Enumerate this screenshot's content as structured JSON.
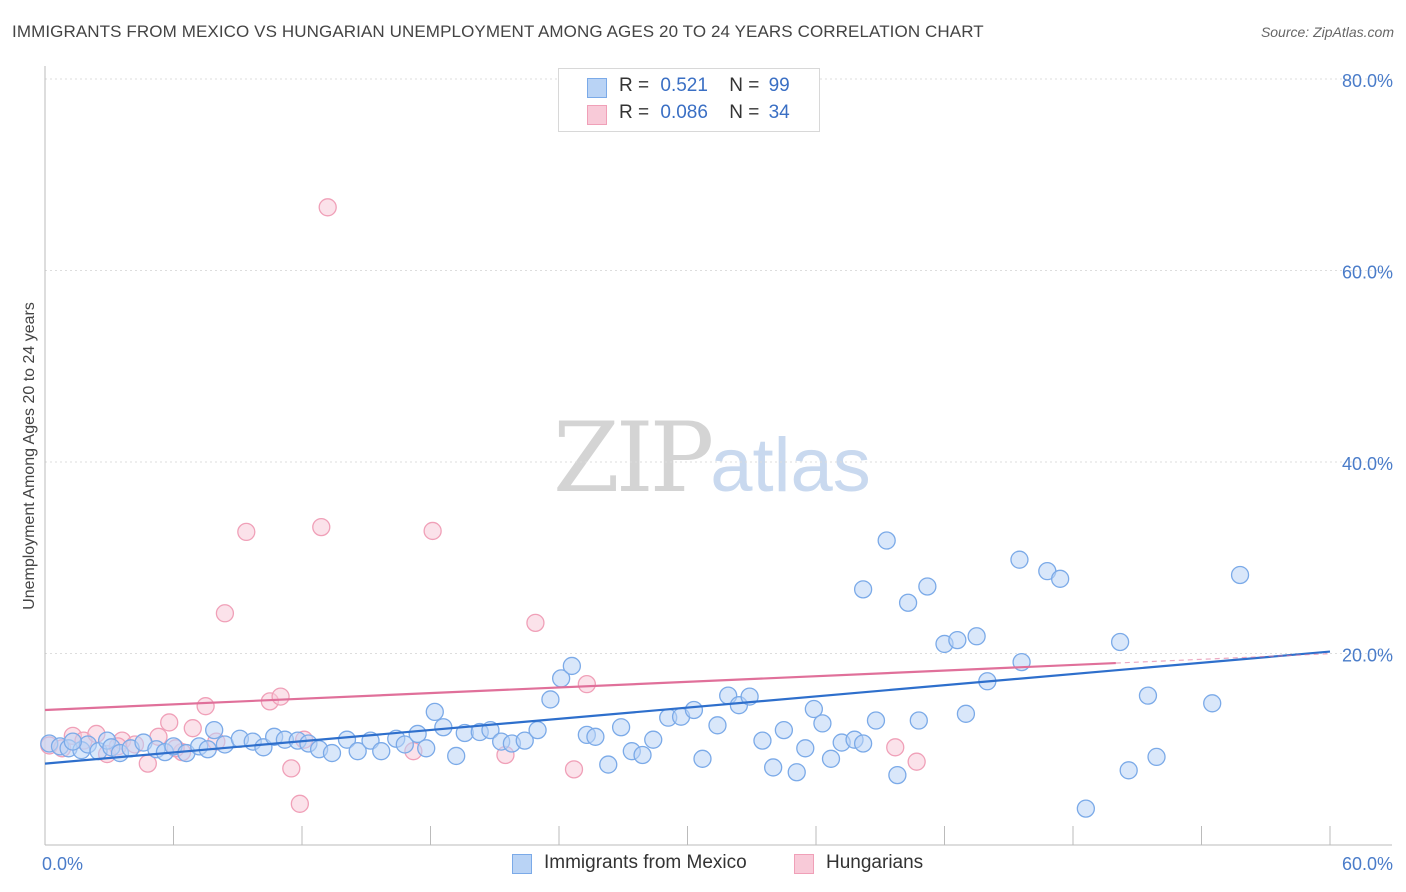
{
  "header": {
    "title": "IMMIGRANTS FROM MEXICO VS HUNGARIAN UNEMPLOYMENT AMONG AGES 20 TO 24 YEARS CORRELATION CHART",
    "source": "Source: ZipAtlas.com"
  },
  "watermark": {
    "zip": "ZIP",
    "atlas": "atlas"
  },
  "legend": {
    "rows": [
      {
        "r_label": "R =",
        "r_value": "0.521",
        "n_label": "N =",
        "n_value": "99"
      },
      {
        "r_label": "R =",
        "r_value": "0.086",
        "n_label": "N =",
        "n_value": "34"
      }
    ]
  },
  "colors": {
    "series1": "#7baae8",
    "series1_fill": "#b9d3f5",
    "series1_line": "#2e6fcc",
    "series2": "#f0a0b8",
    "series2_fill": "#f8cad8",
    "series2_line": "#e0709a",
    "tick_text": "#4a7cc9",
    "grid": "#dddddd"
  },
  "chart_data": {
    "type": "scatter",
    "title": "IMMIGRANTS FROM MEXICO VS HUNGARIAN UNEMPLOYMENT AMONG AGES 20 TO 24 YEARS CORRELATION CHART",
    "xlabel": "",
    "ylabel": "Unemployment Among Ages 20 to 24 years",
    "xlim": [
      0,
      60
    ],
    "ylim": [
      0,
      80
    ],
    "x_tick_labels": [
      "0.0%",
      "60.0%"
    ],
    "y_ticks": [
      20,
      40,
      60,
      80
    ],
    "y_tick_labels": [
      "20.0%",
      "40.0%",
      "60.0%",
      "80.0%"
    ],
    "grid": true,
    "legend_position": "top-center",
    "series": [
      {
        "name": "Immigrants from Mexico",
        "trend": {
          "x": [
            0,
            60
          ],
          "y": [
            8.5,
            20.2
          ]
        },
        "points": [
          {
            "x": 0.2,
            "y": 10.6
          },
          {
            "x": 0.7,
            "y": 10.3
          },
          {
            "x": 1.1,
            "y": 10.1
          },
          {
            "x": 1.7,
            "y": 9.9
          },
          {
            "x": 2.0,
            "y": 10.5
          },
          {
            "x": 2.5,
            "y": 9.8
          },
          {
            "x": 2.9,
            "y": 10.9
          },
          {
            "x": 3.1,
            "y": 10.2
          },
          {
            "x": 3.5,
            "y": 9.6
          },
          {
            "x": 4.0,
            "y": 10.1
          },
          {
            "x": 4.6,
            "y": 10.7
          },
          {
            "x": 5.2,
            "y": 10.0
          },
          {
            "x": 5.6,
            "y": 9.7
          },
          {
            "x": 6.0,
            "y": 10.3
          },
          {
            "x": 6.6,
            "y": 9.6
          },
          {
            "x": 7.2,
            "y": 10.3
          },
          {
            "x": 7.6,
            "y": 10.0
          },
          {
            "x": 7.9,
            "y": 12.0
          },
          {
            "x": 8.4,
            "y": 10.5
          },
          {
            "x": 9.1,
            "y": 11.1
          },
          {
            "x": 9.7,
            "y": 10.8
          },
          {
            "x": 10.2,
            "y": 10.2
          },
          {
            "x": 10.7,
            "y": 11.3
          },
          {
            "x": 11.2,
            "y": 11.0
          },
          {
            "x": 11.8,
            "y": 10.9
          },
          {
            "x": 12.3,
            "y": 10.6
          },
          {
            "x": 12.8,
            "y": 10.0
          },
          {
            "x": 13.4,
            "y": 9.6
          },
          {
            "x": 14.1,
            "y": 11.0
          },
          {
            "x": 14.6,
            "y": 9.8
          },
          {
            "x": 15.2,
            "y": 10.9
          },
          {
            "x": 15.7,
            "y": 9.8
          },
          {
            "x": 16.4,
            "y": 11.1
          },
          {
            "x": 16.8,
            "y": 10.5
          },
          {
            "x": 17.4,
            "y": 11.6
          },
          {
            "x": 17.8,
            "y": 10.1
          },
          {
            "x": 18.2,
            "y": 13.9
          },
          {
            "x": 18.6,
            "y": 12.3
          },
          {
            "x": 19.2,
            "y": 9.3
          },
          {
            "x": 19.6,
            "y": 11.7
          },
          {
            "x": 20.3,
            "y": 11.8
          },
          {
            "x": 20.8,
            "y": 12.0
          },
          {
            "x": 21.3,
            "y": 10.8
          },
          {
            "x": 21.8,
            "y": 10.6
          },
          {
            "x": 22.4,
            "y": 10.9
          },
          {
            "x": 23.0,
            "y": 12.0
          },
          {
            "x": 23.6,
            "y": 15.2
          },
          {
            "x": 24.1,
            "y": 17.4
          },
          {
            "x": 24.6,
            "y": 18.7
          },
          {
            "x": 25.3,
            "y": 11.5
          },
          {
            "x": 25.7,
            "y": 11.3
          },
          {
            "x": 26.3,
            "y": 8.4
          },
          {
            "x": 26.9,
            "y": 12.3
          },
          {
            "x": 27.4,
            "y": 9.8
          },
          {
            "x": 27.9,
            "y": 9.4
          },
          {
            "x": 28.4,
            "y": 11.0
          },
          {
            "x": 29.1,
            "y": 13.3
          },
          {
            "x": 29.7,
            "y": 13.4
          },
          {
            "x": 30.3,
            "y": 14.1
          },
          {
            "x": 30.7,
            "y": 9.0
          },
          {
            "x": 31.4,
            "y": 12.5
          },
          {
            "x": 31.9,
            "y": 15.6
          },
          {
            "x": 32.4,
            "y": 14.6
          },
          {
            "x": 32.9,
            "y": 15.5
          },
          {
            "x": 33.5,
            "y": 10.9
          },
          {
            "x": 34.0,
            "y": 8.1
          },
          {
            "x": 34.5,
            "y": 12.0
          },
          {
            "x": 35.1,
            "y": 7.6
          },
          {
            "x": 35.5,
            "y": 10.1
          },
          {
            "x": 35.9,
            "y": 14.2
          },
          {
            "x": 36.3,
            "y": 12.7
          },
          {
            "x": 36.7,
            "y": 9.0
          },
          {
            "x": 37.2,
            "y": 10.7
          },
          {
            "x": 37.8,
            "y": 11.0
          },
          {
            "x": 38.2,
            "y": 10.6
          },
          {
            "x": 38.8,
            "y": 13.0
          },
          {
            "x": 39.3,
            "y": 31.8
          },
          {
            "x": 39.8,
            "y": 7.3
          },
          {
            "x": 40.3,
            "y": 25.3
          },
          {
            "x": 40.8,
            "y": 13.0
          },
          {
            "x": 41.2,
            "y": 27.0
          },
          {
            "x": 42.0,
            "y": 21.0
          },
          {
            "x": 42.6,
            "y": 21.4
          },
          {
            "x": 43.0,
            "y": 13.7
          },
          {
            "x": 43.5,
            "y": 21.8
          },
          {
            "x": 44.0,
            "y": 17.1
          },
          {
            "x": 45.5,
            "y": 29.8
          },
          {
            "x": 45.6,
            "y": 19.1
          },
          {
            "x": 46.8,
            "y": 28.6
          },
          {
            "x": 47.4,
            "y": 27.8
          },
          {
            "x": 48.6,
            "y": 3.8
          },
          {
            "x": 50.2,
            "y": 21.2
          },
          {
            "x": 50.6,
            "y": 7.8
          },
          {
            "x": 51.5,
            "y": 15.6
          },
          {
            "x": 51.9,
            "y": 9.2
          },
          {
            "x": 54.5,
            "y": 14.8
          },
          {
            "x": 55.8,
            "y": 28.2
          },
          {
            "x": 1.3,
            "y": 10.8
          },
          {
            "x": 38.2,
            "y": 26.7
          }
        ]
      },
      {
        "name": "Hungarians",
        "trend": {
          "x": [
            0,
            50
          ],
          "y": [
            14.1,
            19.0
          ]
        },
        "points": [
          {
            "x": 0.2,
            "y": 10.4
          },
          {
            "x": 0.8,
            "y": 10.1
          },
          {
            "x": 1.3,
            "y": 11.4
          },
          {
            "x": 1.8,
            "y": 10.9
          },
          {
            "x": 2.4,
            "y": 11.6
          },
          {
            "x": 2.9,
            "y": 9.5
          },
          {
            "x": 3.6,
            "y": 10.9
          },
          {
            "x": 4.2,
            "y": 10.5
          },
          {
            "x": 4.8,
            "y": 8.5
          },
          {
            "x": 5.3,
            "y": 11.3
          },
          {
            "x": 5.8,
            "y": 12.8
          },
          {
            "x": 6.4,
            "y": 9.7
          },
          {
            "x": 6.9,
            "y": 12.2
          },
          {
            "x": 7.5,
            "y": 14.5
          },
          {
            "x": 8.0,
            "y": 10.8
          },
          {
            "x": 8.4,
            "y": 24.2
          },
          {
            "x": 9.4,
            "y": 32.7
          },
          {
            "x": 10.5,
            "y": 15.0
          },
          {
            "x": 11.0,
            "y": 15.5
          },
          {
            "x": 11.5,
            "y": 8.0
          },
          {
            "x": 11.9,
            "y": 4.3
          },
          {
            "x": 12.1,
            "y": 11.0
          },
          {
            "x": 12.9,
            "y": 33.2
          },
          {
            "x": 13.2,
            "y": 66.6
          },
          {
            "x": 17.2,
            "y": 9.8
          },
          {
            "x": 18.1,
            "y": 32.8
          },
          {
            "x": 21.5,
            "y": 9.4
          },
          {
            "x": 22.9,
            "y": 23.2
          },
          {
            "x": 24.7,
            "y": 7.9
          },
          {
            "x": 25.3,
            "y": 16.8
          },
          {
            "x": 39.7,
            "y": 10.2
          },
          {
            "x": 40.7,
            "y": 8.7
          },
          {
            "x": 3.4,
            "y": 10.3
          },
          {
            "x": 6.1,
            "y": 10.1
          }
        ]
      }
    ]
  },
  "bottom_legend": {
    "items": [
      {
        "label": "Immigrants from Mexico"
      },
      {
        "label": "Hungarians"
      }
    ]
  }
}
